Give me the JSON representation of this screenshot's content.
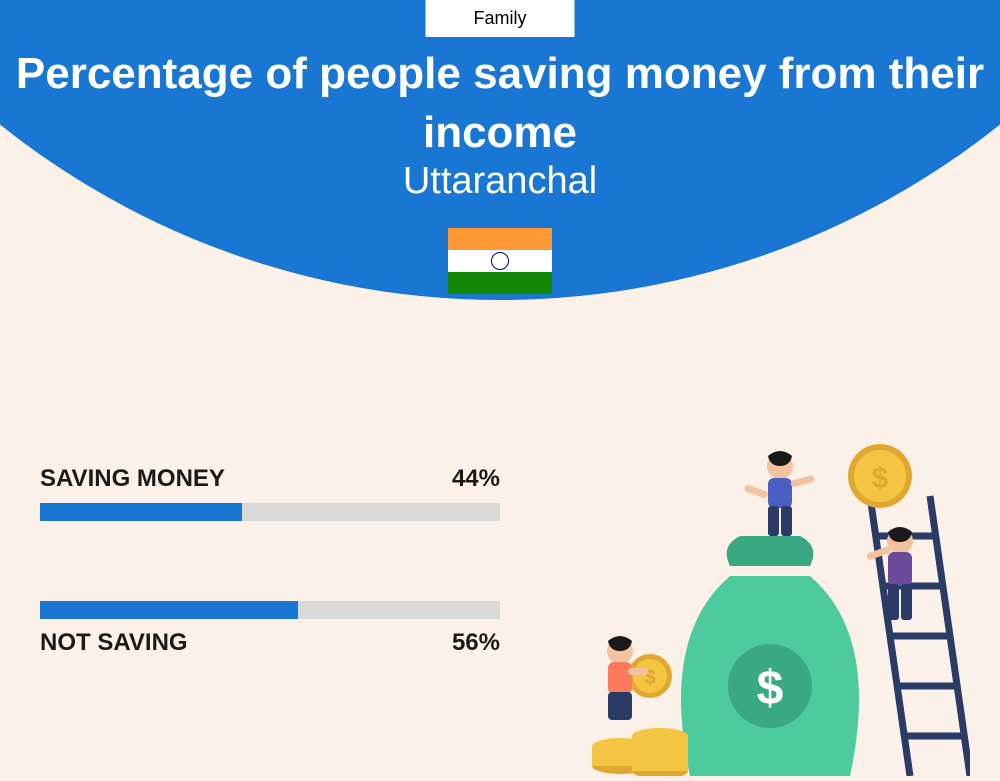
{
  "category": "Family",
  "title": "Percentage of people saving money from their income",
  "subtitle": "Uttaranchal",
  "flag": {
    "stripes": [
      "#ff9933",
      "#ffffff",
      "#138808"
    ],
    "chakra_color": "#000080"
  },
  "colors": {
    "header_bg": "#1976d2",
    "page_bg": "#fbf1e8",
    "bar_fill": "#1976d2",
    "bar_track": "#d9d9d9",
    "text_dark": "#1a1a1a",
    "text_light": "#ffffff"
  },
  "bars": [
    {
      "label": "SAVING MONEY",
      "value": 44,
      "display": "44%",
      "label_position": "above"
    },
    {
      "label": "NOT SAVING",
      "value": 56,
      "display": "56%",
      "label_position": "below"
    }
  ],
  "illustration": {
    "money_bag_color": "#4eca9f",
    "money_bag_dark": "#3ba884",
    "coin_color": "#f4c542",
    "coin_dark": "#e0a830",
    "ladder_color": "#2a3b66",
    "person1_shirt": "#ff7a5c",
    "person1_pants": "#2a3b66",
    "person2_shirt": "#4a5fc1",
    "person2_pants": "#2a3b66",
    "person3_shirt": "#6b4a9c",
    "person3_pants": "#2a3b66",
    "skin": "#f4c2a0",
    "hair": "#1a1a1a"
  }
}
